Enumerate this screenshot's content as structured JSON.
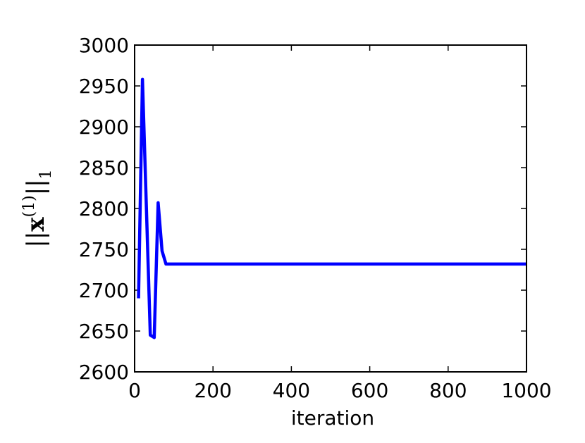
{
  "chart_data": {
    "type": "line",
    "xlabel": "iteration",
    "ylabel": {
      "open": "||",
      "base": "x",
      "sup": "(1)",
      "close": "||",
      "sub": "1"
    },
    "x": [
      10,
      20,
      40,
      50,
      60,
      70,
      80,
      1000
    ],
    "series": [
      {
        "color": "#0000ff",
        "values": [
          2690,
          2958,
          2645,
          2642,
          2807,
          2748,
          2732,
          2732
        ]
      }
    ],
    "xlim": [
      0,
      1000
    ],
    "xticks": [
      0,
      200,
      400,
      600,
      800,
      1000
    ],
    "ylim": [
      2600,
      3000
    ],
    "yticks": [
      2600,
      2650,
      2700,
      2750,
      2800,
      2850,
      2900,
      2950,
      3000
    ],
    "grid": false
  }
}
